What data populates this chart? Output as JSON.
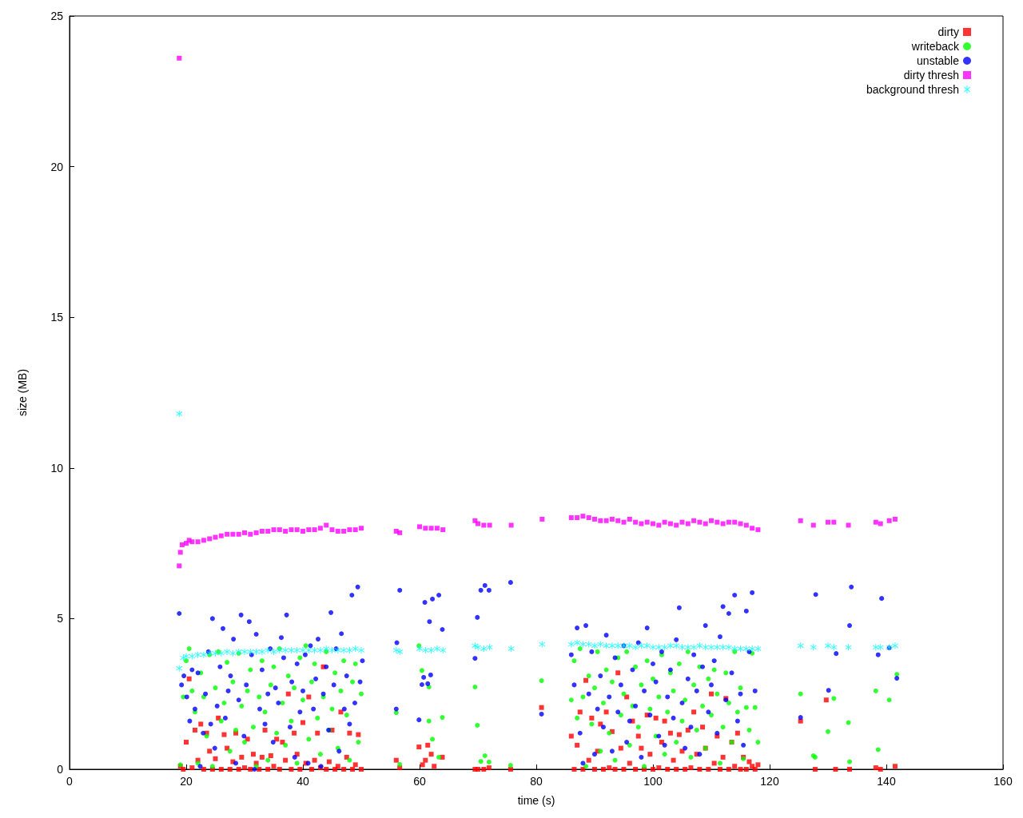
{
  "chart_data": {
    "type": "scatter",
    "xlabel": "time (s)",
    "ylabel": "size (MB)",
    "xlim": [
      0,
      160
    ],
    "xticks": [
      0,
      20,
      40,
      60,
      80,
      100,
      120,
      140,
      160
    ],
    "ylim": [
      0,
      25
    ],
    "yticks": [
      0,
      5,
      10,
      15,
      20,
      25
    ],
    "grid": false,
    "legend": "top right",
    "series": [
      {
        "name": "dirty",
        "color": "#ff0000",
        "marker": "square",
        "x": [
          19,
          19.5,
          20,
          20.5,
          21,
          21.5,
          22,
          22.5,
          23,
          23.5,
          24,
          24.5,
          25,
          25.5,
          26,
          26.5,
          27,
          27.5,
          28,
          28.5,
          29,
          29.5,
          30,
          30.5,
          31,
          31.5,
          32,
          32.5,
          33,
          33.5,
          34,
          34.5,
          35,
          35.5,
          36,
          36.5,
          37,
          37.5,
          38,
          38.5,
          39,
          39.5,
          40,
          40.5,
          41,
          41.5,
          42,
          42.5,
          43,
          43.5,
          44,
          44.5,
          45,
          45.5,
          46,
          46.5,
          47,
          47.5,
          48,
          48.5,
          49,
          49.5,
          50,
          56,
          56.6,
          59.9,
          60.5,
          61,
          61.4,
          62,
          62.5,
          63.9,
          69.5,
          70,
          71,
          71.9,
          75.6,
          80.9,
          86,
          86.5,
          87,
          87.5,
          88,
          88.5,
          89,
          89.5,
          90,
          90.5,
          91,
          91.5,
          92,
          92.5,
          93,
          93.5,
          94,
          94.5,
          95,
          95.5,
          96,
          96.5,
          97,
          97.5,
          98,
          98.5,
          99,
          99.5,
          100,
          100.5,
          101,
          101.5,
          102,
          102.5,
          103,
          103.5,
          104,
          104.5,
          105,
          105.5,
          106,
          106.5,
          107,
          107.5,
          108,
          108.5,
          109,
          109.5,
          110,
          110.5,
          111,
          111.5,
          112,
          112.5,
          113,
          113.5,
          114,
          114.5,
          115,
          115.5,
          116,
          116.5,
          117,
          117.5,
          118,
          125.3,
          127.8,
          129.7,
          131.3,
          133.7,
          138.2,
          139,
          141.5
        ],
        "values": [
          0.1,
          0.0,
          0.9,
          3.0,
          0.05,
          1.3,
          0.3,
          1.5,
          0.0,
          1.2,
          0.6,
          0.0,
          0.35,
          1.7,
          0.0,
          1.15,
          0.7,
          0.0,
          0.25,
          1.2,
          0.0,
          0.4,
          0.05,
          1.0,
          0.0,
          0.5,
          0.2,
          0.0,
          0.4,
          1.3,
          0.0,
          0.45,
          0.1,
          1.0,
          0.0,
          0.9,
          0.3,
          2.5,
          0.0,
          1.2,
          0.5,
          0.0,
          1.55,
          0.2,
          2.4,
          0.0,
          0.3,
          1.2,
          0.05,
          3.4,
          0.0,
          0.25,
          1.3,
          0.0,
          0.1,
          1.9,
          0.0,
          0.4,
          1.2,
          0.0,
          0.15,
          1.15,
          0.0,
          0.3,
          0.05,
          0.74,
          0.15,
          0.3,
          0.8,
          0.5,
          0.1,
          0.4,
          0.0,
          0.0,
          0.0,
          0.05,
          0.0,
          2.05,
          1.1,
          0.0,
          0.8,
          1.9,
          0.0,
          2.95,
          0.3,
          1.7,
          0.0,
          0.6,
          1.5,
          0.0,
          1.9,
          0.05,
          1.25,
          0.0,
          3.2,
          0.7,
          0.0,
          2.4,
          0.2,
          1.6,
          0.0,
          1.1,
          0.7,
          0.0,
          1.8,
          0.5,
          0.0,
          1.7,
          0.05,
          0.9,
          1.6,
          0.0,
          1.2,
          0.3,
          0.0,
          1.15,
          0.6,
          0.0,
          1.3,
          0.05,
          1.9,
          0.5,
          0.0,
          1.4,
          0.7,
          0.0,
          2.5,
          0.2,
          1.1,
          0.0,
          0.4,
          2.35,
          0.0,
          0.9,
          0.1,
          1.2,
          0.0,
          0.4,
          0.0,
          0.25,
          0.1,
          0.0,
          0.15,
          1.6,
          0.0,
          2.3,
          0.0,
          0.0,
          0.05,
          0.0,
          0.1
        ]
      },
      {
        "name": "writeback",
        "color": "#00ff00",
        "marker": "circle",
        "x": [
          19,
          19.5,
          20,
          20.5,
          21,
          21.5,
          22,
          22.5,
          23,
          23.5,
          24,
          24.5,
          25,
          25.5,
          26,
          26.5,
          27,
          27.5,
          28,
          28.5,
          29,
          29.5,
          30,
          30.5,
          31,
          31.5,
          32,
          32.5,
          33,
          33.5,
          34,
          34.5,
          35,
          35.5,
          36,
          36.5,
          37,
          37.5,
          38,
          38.5,
          39,
          39.5,
          40,
          40.5,
          41,
          41.5,
          42,
          42.5,
          43,
          43.5,
          44,
          44.5,
          45,
          45.5,
          46,
          46.5,
          47,
          47.5,
          48,
          48.5,
          49,
          49.5,
          50,
          59.9,
          60.4,
          61.6,
          56,
          61.6,
          63.9,
          62.2,
          63.3,
          56.6,
          69.5,
          69.9,
          71.2,
          70.5,
          71.9,
          75.6,
          80.9,
          86,
          86.5,
          87,
          87.5,
          88,
          88.5,
          89,
          89.5,
          90,
          90.5,
          91,
          91.5,
          92,
          92.5,
          93,
          93.5,
          94,
          94.5,
          95,
          95.5,
          96,
          96.5,
          97,
          97.5,
          98,
          98.5,
          99,
          99.5,
          100,
          100.5,
          101,
          101.5,
          102,
          102.5,
          103,
          103.5,
          104,
          104.5,
          105,
          105.5,
          106,
          106.5,
          107,
          107.5,
          108,
          108.5,
          109,
          109.5,
          110,
          110.5,
          111,
          111.5,
          112,
          112.5,
          113,
          113.5,
          114,
          114.5,
          115,
          115.5,
          116,
          116.5,
          117,
          117.5,
          118,
          125.3,
          127.5,
          127.8,
          130,
          131,
          133.5,
          133.7,
          138.2,
          138.6,
          140.5,
          141.8
        ],
        "values": [
          0.15,
          2.4,
          3.6,
          4.0,
          2.6,
          1.9,
          0.2,
          3.2,
          2.4,
          1.1,
          3.8,
          0.1,
          2.7,
          3.9,
          1.6,
          2.2,
          3.55,
          0.6,
          2.9,
          1.3,
          3.85,
          2.1,
          0.9,
          2.6,
          3.3,
          1.4,
          0.1,
          2.4,
          3.6,
          1.9,
          0.3,
          2.8,
          3.4,
          1.2,
          4.0,
          2.2,
          0.8,
          3.1,
          1.6,
          2.7,
          0.2,
          3.7,
          2.3,
          4.1,
          1.0,
          2.9,
          3.5,
          1.7,
          0.5,
          2.4,
          3.9,
          1.3,
          2.0,
          3.2,
          0.7,
          2.6,
          3.6,
          1.8,
          0.3,
          2.9,
          3.5,
          0.9,
          2.5,
          4.1,
          3.28,
          2.73,
          1.88,
          1.6,
          1.72,
          1.0,
          0.4,
          0.16,
          2.73,
          1.46,
          0.45,
          0.26,
          0.24,
          0.13,
          2.94,
          2.3,
          3.6,
          1.7,
          4.0,
          2.4,
          0.1,
          3.1,
          1.5,
          2.7,
          3.9,
          0.6,
          2.2,
          3.3,
          1.2,
          2.9,
          0.3,
          3.7,
          1.8,
          2.5,
          3.9,
          0.8,
          2.1,
          3.4,
          1.4,
          2.8,
          0.1,
          3.6,
          2.0,
          3.0,
          1.1,
          2.4,
          3.8,
          0.5,
          1.9,
          3.2,
          2.6,
          0.9,
          3.5,
          1.6,
          2.3,
          3.9,
          0.4,
          2.8,
          1.3,
          3.4,
          2.1,
          0.7,
          3.0,
          1.8,
          3.3,
          2.5,
          0.2,
          1.4,
          3.2,
          2.2,
          0.9,
          3.9,
          1.9,
          2.7,
          0.35,
          2.05,
          1.3,
          3.85,
          2.05,
          0.9,
          2.5,
          0.45,
          0.4,
          1.25,
          2.35,
          1.55,
          0.25,
          2.6,
          0.65,
          2.3,
          3.15
        ]
      },
      {
        "name": "unstable",
        "color": "#0000ff",
        "marker": "circle",
        "x": [
          18.8,
          19.2,
          19.6,
          20.1,
          20.6,
          21,
          21.5,
          22,
          22.4,
          22.9,
          23.3,
          23.8,
          24.2,
          24.5,
          24.9,
          25.3,
          25.8,
          26.3,
          26.7,
          27.2,
          27.6,
          28.1,
          28.5,
          29,
          29.4,
          29.9,
          30.3,
          30.8,
          31.2,
          31.7,
          32,
          32.6,
          33,
          33.5,
          34,
          34.4,
          34.9,
          35.3,
          35.8,
          36.3,
          36.7,
          37.2,
          37.8,
          38.1,
          38.6,
          39,
          39.5,
          40,
          40.4,
          40.9,
          41.3,
          41.8,
          42.2,
          42.6,
          43.1,
          43.5,
          44,
          44.4,
          44.8,
          45.3,
          45.7,
          46.2,
          46.6,
          47.1,
          47.5,
          48,
          48.4,
          48.9,
          49.4,
          49.8,
          50.2,
          56.6,
          56.1,
          60.9,
          62.2,
          63.3,
          61.7,
          63.9,
          60.7,
          61.9,
          60.4,
          61.4,
          56,
          59.9,
          70.5,
          71.2,
          71.9,
          69.9,
          69.5,
          75.6,
          80.9,
          86,
          86.5,
          87,
          87.5,
          88,
          88.5,
          89,
          89.5,
          90,
          90.5,
          91,
          91.5,
          92,
          92.5,
          93,
          93.5,
          94,
          94.5,
          95,
          95.5,
          96,
          96.5,
          97,
          97.5,
          98,
          98.5,
          99,
          99.5,
          100,
          100.5,
          101,
          101.5,
          102,
          102.5,
          103,
          103.5,
          104,
          104.5,
          105,
          105.5,
          106,
          106.5,
          107,
          107.5,
          108,
          108.5,
          109,
          109.5,
          110,
          110.5,
          111,
          111.5,
          112,
          112.5,
          113,
          113.5,
          114,
          114.5,
          115,
          115.5,
          116,
          116.5,
          117,
          117.5,
          125.3,
          127.9,
          130.1,
          131.4,
          133.7,
          134,
          138.6,
          139.2,
          140.5,
          141.8
        ],
        "values": [
          5.17,
          2.8,
          3.1,
          2.4,
          1.6,
          3.3,
          2.0,
          3.2,
          0.1,
          1.2,
          2.5,
          3.9,
          1.5,
          5.0,
          0.7,
          2.1,
          3.4,
          4.67,
          1.7,
          2.6,
          3.1,
          4.32,
          0.2,
          2.3,
          5.12,
          1.1,
          2.8,
          4.9,
          3.8,
          0.0,
          4.48,
          2.0,
          3.3,
          1.5,
          2.5,
          4.0,
          0.9,
          2.7,
          2.2,
          4.37,
          3.7,
          5.12,
          1.4,
          2.9,
          0.4,
          3.5,
          1.9,
          2.6,
          3.8,
          0.2,
          4.1,
          2.0,
          3.0,
          4.32,
          0.1,
          2.5,
          3.4,
          1.3,
          5.2,
          2.8,
          4.0,
          0.6,
          4.5,
          2.0,
          3.1,
          1.5,
          5.78,
          2.2,
          6.05,
          2.9,
          3.6,
          5.94,
          4.2,
          5.54,
          5.65,
          5.78,
          4.9,
          4.64,
          3.05,
          3.13,
          2.81,
          2.84,
          2.0,
          1.64,
          5.94,
          6.1,
          5.94,
          5.04,
          3.68,
          6.2,
          1.83,
          3.8,
          2.8,
          4.69,
          1.2,
          0.2,
          4.77,
          2.5,
          3.9,
          0.5,
          2.0,
          3.1,
          1.4,
          4.45,
          2.4,
          0.6,
          3.7,
          1.9,
          2.8,
          4.1,
          0.9,
          1.6,
          3.3,
          2.1,
          4.2,
          0.4,
          2.6,
          4.69,
          1.8,
          3.5,
          2.9,
          1.1,
          3.9,
          0.8,
          2.4,
          3.3,
          1.7,
          4.3,
          5.36,
          2.2,
          0.7,
          3.0,
          1.4,
          3.8,
          2.6,
          0.5,
          3.4,
          4.77,
          1.9,
          2.8,
          3.6,
          1.2,
          4.4,
          5.4,
          2.3,
          5.17,
          3.2,
          5.78,
          1.6,
          2.5,
          0.8,
          5.25,
          3.9,
          5.86,
          2.6,
          1.72,
          5.8,
          2.62,
          3.84,
          4.77,
          6.05,
          3.8,
          5.67,
          4.03,
          3.02
        ]
      },
      {
        "name": "dirty thresh",
        "color": "#ff00ff",
        "marker": "square",
        "x": [
          18.8,
          18.8,
          19,
          19.3,
          20,
          20.5,
          21,
          22,
          23,
          24,
          25,
          26,
          27,
          28,
          29,
          30,
          31,
          32,
          33,
          34,
          35,
          36,
          37,
          38,
          39,
          40,
          41,
          42,
          43,
          44,
          45,
          46,
          47,
          48,
          49,
          50,
          56,
          56.6,
          60,
          61,
          62,
          63,
          64,
          69.5,
          70,
          71,
          72,
          75.7,
          81,
          86,
          87,
          88,
          89,
          90,
          91,
          92,
          93,
          94,
          95,
          96,
          97,
          98,
          99,
          100,
          101,
          102,
          103,
          104,
          105,
          106,
          107,
          108,
          109,
          110,
          111,
          112,
          113,
          114,
          115,
          116,
          117,
          118,
          125.3,
          127.5,
          130,
          131,
          133.5,
          138.2,
          139,
          140.5,
          141.5
        ],
        "values": [
          23.6,
          6.75,
          7.2,
          7.45,
          7.5,
          7.6,
          7.55,
          7.55,
          7.6,
          7.65,
          7.7,
          7.75,
          7.8,
          7.8,
          7.8,
          7.85,
          7.8,
          7.85,
          7.9,
          7.9,
          7.95,
          7.95,
          7.9,
          7.95,
          7.95,
          7.9,
          7.95,
          7.95,
          8.0,
          8.1,
          7.95,
          7.9,
          7.9,
          7.95,
          7.95,
          8.0,
          7.9,
          7.85,
          8.05,
          8.0,
          8.0,
          8.0,
          7.95,
          8.25,
          8.15,
          8.1,
          8.1,
          8.1,
          8.3,
          8.35,
          8.35,
          8.4,
          8.35,
          8.3,
          8.25,
          8.25,
          8.3,
          8.25,
          8.2,
          8.3,
          8.2,
          8.15,
          8.2,
          8.15,
          8.1,
          8.2,
          8.15,
          8.1,
          8.2,
          8.15,
          8.25,
          8.2,
          8.15,
          8.25,
          8.2,
          8.15,
          8.2,
          8.2,
          8.15,
          8.1,
          8.0,
          7.95,
          8.25,
          8.1,
          8.2,
          8.2,
          8.1,
          8.2,
          8.15,
          8.25,
          8.3
        ]
      },
      {
        "name": "background thresh",
        "color": "#00ffff",
        "marker": "star",
        "x": [
          18.8,
          18.8,
          19.5,
          20,
          21,
          22,
          23,
          24,
          25,
          26,
          27,
          28,
          29,
          30,
          31,
          32,
          33,
          34,
          35,
          36,
          37,
          38,
          39,
          40,
          41,
          42,
          43,
          44,
          45,
          46,
          47,
          48,
          49,
          50,
          56,
          56.6,
          60,
          61,
          62,
          63,
          64,
          69.5,
          70,
          71,
          72,
          75.7,
          81,
          86,
          87,
          88,
          89,
          90,
          91,
          92,
          93,
          94,
          95,
          96,
          97,
          98,
          99,
          100,
          101,
          102,
          103,
          104,
          105,
          106,
          107,
          108,
          109,
          110,
          111,
          112,
          113,
          114,
          115,
          116,
          117,
          118,
          125.3,
          127.5,
          130,
          131,
          133.5,
          138.2,
          139,
          140.5,
          141.5
        ],
        "values": [
          11.8,
          3.35,
          3.7,
          3.75,
          3.75,
          3.8,
          3.8,
          3.85,
          3.85,
          3.85,
          3.9,
          3.85,
          3.9,
          3.9,
          3.9,
          3.9,
          3.9,
          3.95,
          3.9,
          3.95,
          3.95,
          3.95,
          3.95,
          3.95,
          3.95,
          3.95,
          3.95,
          4.0,
          3.95,
          3.95,
          3.95,
          3.95,
          4.0,
          3.95,
          3.95,
          3.9,
          4.0,
          3.95,
          3.95,
          4.0,
          3.95,
          4.1,
          4.05,
          4.0,
          4.05,
          4.0,
          4.15,
          4.15,
          4.2,
          4.15,
          4.15,
          4.1,
          4.15,
          4.1,
          4.1,
          4.1,
          4.1,
          4.1,
          4.05,
          4.1,
          4.1,
          4.05,
          4.05,
          4.05,
          4.1,
          4.1,
          4.05,
          4.05,
          4.05,
          4.1,
          4.05,
          4.05,
          4.05,
          4.05,
          4.05,
          4.0,
          4.0,
          4.0,
          4.0,
          4.0,
          4.1,
          4.05,
          4.1,
          4.05,
          4.05,
          4.05,
          4.05,
          4.05,
          4.1
        ]
      }
    ]
  }
}
